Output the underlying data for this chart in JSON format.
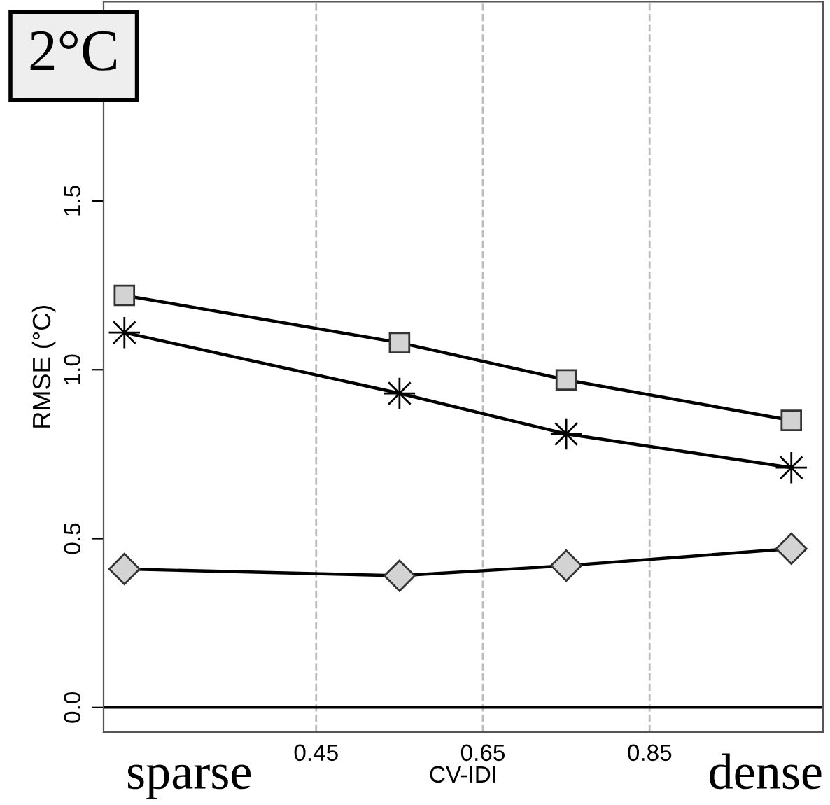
{
  "chart_data": {
    "type": "line",
    "xlabel": "CV-IDI",
    "ylabel": "RMSE (°C)",
    "x": [
      0.22,
      0.55,
      0.75,
      1.02
    ],
    "series": [
      {
        "color": "#000000",
        "marker": "square",
        "values": [
          1.22,
          1.08,
          0.97,
          0.85
        ]
      },
      {
        "color": "#000000",
        "marker": "star",
        "values": [
          1.11,
          0.93,
          0.81,
          0.71
        ]
      },
      {
        "color": "#000000",
        "marker": "diamond",
        "values": [
          0.41,
          0.39,
          0.42,
          0.47
        ]
      }
    ],
    "xlim": [
      0.195,
      1.058
    ],
    "ylim": [
      -0.073,
      2.09
    ],
    "xticks": [
      0.45,
      0.65,
      0.85
    ],
    "yticks": [
      {
        "value": 0,
        "label": "0.0"
      },
      {
        "value": 0.5,
        "label": "0.5"
      },
      {
        "value": 1.0,
        "label": "1.0"
      },
      {
        "value": 1.5,
        "label": "1.5"
      }
    ],
    "grid": "x",
    "line_style": "solid",
    "ref_lines": [
      {
        "axis": "y",
        "value": 0,
        "color": "#000000",
        "line_style": "solid"
      }
    ],
    "annotations": [
      "2°C",
      "sparse",
      "dense"
    ]
  }
}
